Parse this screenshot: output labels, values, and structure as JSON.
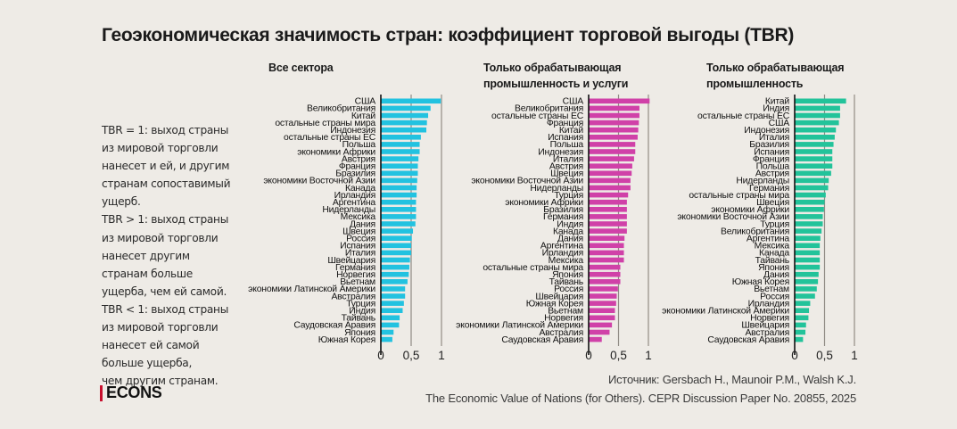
{
  "title": "Геоэкономическая значимость стран: коэффициент торговой выгоды (TBR)",
  "legend_lines": [
    "TBR = 1: выход страны",
    "из мировой торговли",
    "нанесет и ей, и другим",
    "странам сопоставимый",
    "ущерб.",
    "TBR > 1: выход страны",
    "из мировой торговли",
    "нанесет другим",
    "странам больше",
    "ущерба, чем ей самой.",
    "TBR < 1: выход страны",
    "из мировой торговли",
    "нанесет ей самой",
    "больше ущерба,",
    "чем другим странам."
  ],
  "footer": {
    "logo": "ECONS",
    "source_line1": "Источник: Gersbach H., Maunoir P.M., Walsh K.J.",
    "source_line2": "The Economic Value of Nations (for Others). CEPR Discussion Paper No. 20855, 2025"
  },
  "colors": {
    "all_sectors": "#22c2e0",
    "manufacturing_services": "#d041a8",
    "manufacturing": "#22c39a",
    "logo_accent": "#c8102e"
  },
  "chart_data": [
    {
      "type": "bar",
      "orientation": "horizontal",
      "title_lines": [
        "Все сектора"
      ],
      "xlim": [
        0,
        1.05
      ],
      "xticks": [
        0,
        0.5,
        1
      ],
      "xtick_labels": [
        "0",
        "0,5",
        "1"
      ],
      "color": "#22c2e0",
      "categories": [
        "США",
        "Великобритания",
        "Китай",
        "остальные страны мира",
        "Индонезия",
        "остальные страны ЕС",
        "Польша",
        "экономики Африки",
        "Австрия",
        "Франция",
        "Бразилия",
        "экономики Восточной Азии",
        "Канада",
        "Ирландия",
        "Аргентина",
        "Нидерланды",
        "Мексика",
        "Дания",
        "Швеция",
        "Россия",
        "Испания",
        "Италия",
        "Швейцария",
        "Германия",
        "Норвегия",
        "Вьетнам",
        "экономики Латинской Америки",
        "Австралия",
        "Турция",
        "Индия",
        "Тайвань",
        "Саудовская Аравия",
        "Япония",
        "Южная Корея"
      ],
      "values": [
        0.99,
        0.82,
        0.78,
        0.76,
        0.75,
        0.66,
        0.64,
        0.64,
        0.62,
        0.61,
        0.61,
        0.6,
        0.59,
        0.59,
        0.58,
        0.58,
        0.58,
        0.57,
        0.53,
        0.51,
        0.5,
        0.5,
        0.48,
        0.47,
        0.46,
        0.44,
        0.4,
        0.4,
        0.38,
        0.36,
        0.31,
        0.3,
        0.21,
        0.19
      ]
    },
    {
      "type": "bar",
      "orientation": "horizontal",
      "title_lines": [
        "Только обрабатывающая",
        "промышленность и услуги"
      ],
      "xlim": [
        0,
        1.05
      ],
      "xticks": [
        0,
        0.5,
        1
      ],
      "xtick_labels": [
        "0",
        "0,5",
        "1"
      ],
      "color": "#d041a8",
      "categories": [
        "США",
        "Великобритания",
        "остальные страны ЕС",
        "Франция",
        "Китай",
        "Испания",
        "Польша",
        "Индонезия",
        "Италия",
        "Австрия",
        "Швеция",
        "экономики Восточной Азии",
        "Нидерланды",
        "Турция",
        "экономики Африки",
        "Бразилия",
        "Германия",
        "Индия",
        "Канада",
        "Дания",
        "Аргентина",
        "Ирландия",
        "Мексика",
        "остальные страны мира",
        "Япония",
        "Тайвань",
        "Россия",
        "Швейцария",
        "Южная Корея",
        "Вьетнам",
        "Норвегия",
        "экономики Латинской Америки",
        "Австралия",
        "Саудовская Аравия"
      ],
      "values": [
        1.02,
        0.85,
        0.85,
        0.84,
        0.83,
        0.82,
        0.78,
        0.78,
        0.76,
        0.73,
        0.72,
        0.7,
        0.7,
        0.66,
        0.64,
        0.64,
        0.64,
        0.64,
        0.64,
        0.6,
        0.59,
        0.59,
        0.59,
        0.53,
        0.53,
        0.53,
        0.49,
        0.47,
        0.46,
        0.44,
        0.44,
        0.39,
        0.35,
        0.22
      ]
    },
    {
      "type": "bar",
      "orientation": "horizontal",
      "title_lines": [
        "Только обрабатывающая",
        "промышленность"
      ],
      "xlim": [
        0,
        1.05
      ],
      "xticks": [
        0,
        0.5,
        1
      ],
      "xtick_labels": [
        "0",
        "0,5",
        "1"
      ],
      "color": "#22c39a",
      "categories": [
        "Китай",
        "Индия",
        "остальные страны ЕС",
        "США",
        "Индонезия",
        "Италия",
        "Бразилия",
        "Испания",
        "Франция",
        "Польша",
        "Австрия",
        "Нидерланды",
        "Германия",
        "остальные страны мира",
        "Швеция",
        "экономики Африки",
        "экономики Восточной Азии",
        "Турция",
        "Великобритания",
        "Аргентина",
        "Мексика",
        "Канада",
        "Тайвань",
        "Япония",
        "Дания",
        "Южная Корея",
        "Вьетнам",
        "Россия",
        "Ирландия",
        "экономики Латинской Америки",
        "Норвегия",
        "Швейцария",
        "Австралия",
        "Саудовская Аравия"
      ],
      "values": [
        0.86,
        0.76,
        0.76,
        0.74,
        0.69,
        0.67,
        0.65,
        0.63,
        0.63,
        0.63,
        0.61,
        0.57,
        0.56,
        0.52,
        0.5,
        0.49,
        0.47,
        0.47,
        0.45,
        0.43,
        0.42,
        0.42,
        0.42,
        0.42,
        0.4,
        0.39,
        0.37,
        0.34,
        0.26,
        0.24,
        0.23,
        0.19,
        0.18,
        0.14
      ]
    }
  ]
}
